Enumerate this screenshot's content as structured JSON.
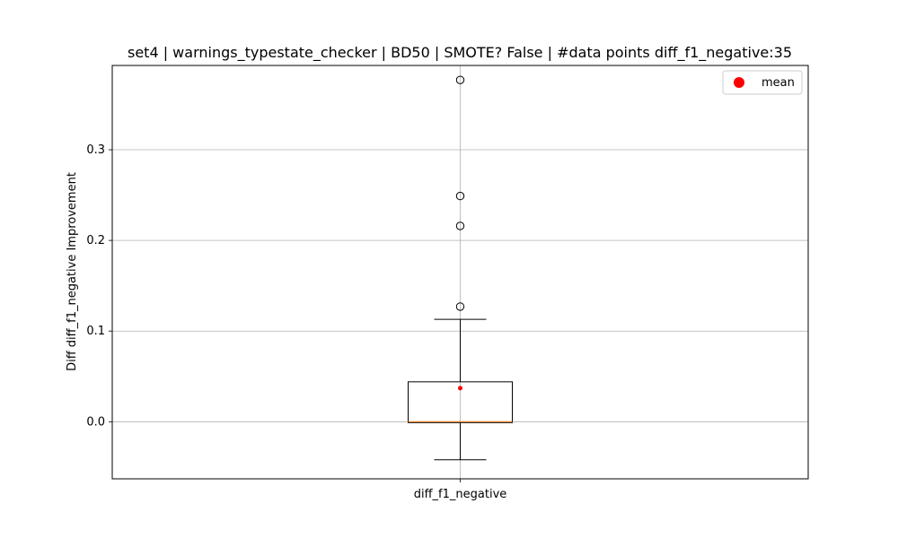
{
  "chart_data": {
    "type": "box",
    "title": "set4 | warnings_typestate_checker | BD50 | SMOTE? False | #data points diff_f1_negative:35",
    "xlabel": "",
    "ylabel": "Diff diff_f1_negative Improvement",
    "categories": [
      "diff_f1_negative"
    ],
    "ylim": [
      -0.063,
      0.393
    ],
    "yticks": [
      0.0,
      0.1,
      0.2,
      0.3
    ],
    "ytick_labels": [
      "0.0",
      "0.1",
      "0.2",
      "0.3"
    ],
    "grid": true,
    "legend": {
      "placement": "top-right",
      "entries": [
        "mean"
      ]
    },
    "box": {
      "whisker_low": -0.042,
      "q1": -0.001,
      "median": 0.0,
      "q3": 0.044,
      "whisker_high": 0.113,
      "mean": 0.037,
      "outliers": [
        0.127,
        0.216,
        0.249,
        0.377
      ]
    },
    "colors": {
      "mean": "#ff0000",
      "median": "#ff7f0e",
      "grid": "#b0b0b0",
      "box": "#000000"
    }
  }
}
